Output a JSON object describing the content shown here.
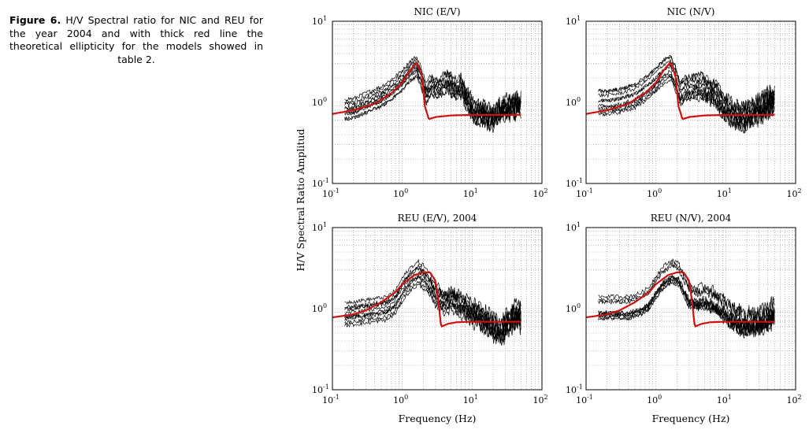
{
  "caption": {
    "label": "Figure 6.",
    "text": " H/V Spectral ratio for NIC and REU for the year 2004 and with thick red line the theoretical ellipticity for the models showed in table 2."
  },
  "colors": {
    "data": "#000000",
    "model": "#cc1111",
    "grid": "#8a8a8a"
  },
  "chart_data": {
    "type": "line",
    "shared_ylabel": "H/V Spectral Ratio Amplitud",
    "shared_xlabel": "Frequency (Hz)",
    "xscale": "log",
    "yscale": "log",
    "xlim": [
      0.1,
      100
    ],
    "ylim": [
      0.1,
      10
    ],
    "x_tick_base": "10",
    "x_tick_exps": [
      "-1",
      "0",
      "1",
      "2"
    ],
    "y_tick_base": "10",
    "y_tick_exps": [
      "-1",
      "0",
      "1"
    ],
    "panels": [
      {
        "title": "NIC (E/V)",
        "model_curve": [
          [
            0.1,
            0.72
          ],
          [
            0.2,
            0.8
          ],
          [
            0.4,
            0.96
          ],
          [
            0.7,
            1.3
          ],
          [
            1.0,
            1.75
          ],
          [
            1.3,
            2.5
          ],
          [
            1.6,
            3.1
          ],
          [
            1.9,
            2.2
          ],
          [
            2.1,
            0.9
          ],
          [
            2.4,
            0.62
          ],
          [
            3,
            0.66
          ],
          [
            5,
            0.69
          ],
          [
            10,
            0.7
          ],
          [
            50,
            0.7
          ]
        ],
        "data_curve": [
          [
            0.15,
            0.85
          ],
          [
            0.2,
            0.85
          ],
          [
            0.3,
            1.0
          ],
          [
            0.5,
            1.2
          ],
          [
            0.8,
            1.6
          ],
          [
            1.0,
            1.9
          ],
          [
            1.3,
            2.5
          ],
          [
            1.6,
            2.8
          ],
          [
            1.9,
            2.0
          ],
          [
            2.2,
            1.3
          ],
          [
            2.6,
            1.7
          ],
          [
            3.2,
            1.5
          ],
          [
            3.5,
            1.6
          ],
          [
            4.5,
            1.9
          ],
          [
            5.5,
            1.5
          ],
          [
            7,
            1.6
          ],
          [
            9,
            1.0
          ],
          [
            11,
            0.8
          ],
          [
            14,
            0.75
          ],
          [
            18,
            0.65
          ],
          [
            22,
            0.7
          ],
          [
            28,
            0.85
          ],
          [
            35,
            0.9
          ],
          [
            50,
            1.0
          ]
        ],
        "spread": 0.15
      },
      {
        "title": "NIC (N/V)",
        "model_curve": [
          [
            0.1,
            0.72
          ],
          [
            0.2,
            0.8
          ],
          [
            0.4,
            0.96
          ],
          [
            0.7,
            1.3
          ],
          [
            1.0,
            1.75
          ],
          [
            1.3,
            2.5
          ],
          [
            1.6,
            3.1
          ],
          [
            1.9,
            2.2
          ],
          [
            2.1,
            0.9
          ],
          [
            2.4,
            0.62
          ],
          [
            3,
            0.66
          ],
          [
            5,
            0.69
          ],
          [
            10,
            0.7
          ],
          [
            50,
            0.7
          ]
        ],
        "data_curve": [
          [
            0.15,
            1.0
          ],
          [
            0.2,
            1.0
          ],
          [
            0.3,
            1.05
          ],
          [
            0.5,
            1.2
          ],
          [
            0.8,
            1.6
          ],
          [
            1.0,
            1.9
          ],
          [
            1.3,
            2.4
          ],
          [
            1.6,
            2.7
          ],
          [
            1.9,
            2.0
          ],
          [
            2.2,
            1.3
          ],
          [
            2.7,
            1.5
          ],
          [
            3.3,
            1.5
          ],
          [
            4.5,
            1.6
          ],
          [
            5.5,
            1.4
          ],
          [
            7,
            1.3
          ],
          [
            9,
            0.95
          ],
          [
            11,
            0.8
          ],
          [
            14,
            0.7
          ],
          [
            18,
            0.65
          ],
          [
            22,
            0.7
          ],
          [
            28,
            0.8
          ],
          [
            35,
            0.9
          ],
          [
            50,
            1.1
          ]
        ],
        "spread": 0.15
      },
      {
        "title": "REU (E/V), 2004",
        "model_curve": [
          [
            0.1,
            0.78
          ],
          [
            0.2,
            0.85
          ],
          [
            0.3,
            0.95
          ],
          [
            0.5,
            1.2
          ],
          [
            0.8,
            1.6
          ],
          [
            1.0,
            2.0
          ],
          [
            1.5,
            2.6
          ],
          [
            2.0,
            2.8
          ],
          [
            2.5,
            2.8
          ],
          [
            3.0,
            2.2
          ],
          [
            3.3,
            1.2
          ],
          [
            3.6,
            0.6
          ],
          [
            4.5,
            0.65
          ],
          [
            6,
            0.68
          ],
          [
            10,
            0.69
          ],
          [
            50,
            0.69
          ]
        ],
        "data_curve": [
          [
            0.15,
            0.85
          ],
          [
            0.25,
            0.9
          ],
          [
            0.4,
            0.95
          ],
          [
            0.6,
            1.0
          ],
          [
            0.8,
            1.2
          ],
          [
            1.0,
            1.7
          ],
          [
            1.3,
            2.3
          ],
          [
            1.7,
            2.7
          ],
          [
            2.1,
            2.4
          ],
          [
            2.6,
            1.8
          ],
          [
            3.0,
            1.5
          ],
          [
            4,
            1.2
          ],
          [
            5,
            1.3
          ],
          [
            7,
            1.1
          ],
          [
            9,
            0.95
          ],
          [
            12,
            0.8
          ],
          [
            16,
            0.7
          ],
          [
            20,
            0.6
          ],
          [
            25,
            0.5
          ],
          [
            30,
            0.6
          ],
          [
            40,
            0.8
          ],
          [
            50,
            0.8
          ]
        ],
        "spread": 0.15
      },
      {
        "title": "REU (N/V), 2004",
        "model_curve": [
          [
            0.1,
            0.78
          ],
          [
            0.2,
            0.85
          ],
          [
            0.3,
            0.95
          ],
          [
            0.5,
            1.2
          ],
          [
            0.8,
            1.6
          ],
          [
            1.0,
            2.0
          ],
          [
            1.5,
            2.6
          ],
          [
            2.0,
            2.8
          ],
          [
            2.5,
            2.8
          ],
          [
            3.0,
            2.2
          ],
          [
            3.3,
            1.2
          ],
          [
            3.6,
            0.6
          ],
          [
            4.5,
            0.65
          ],
          [
            6,
            0.68
          ],
          [
            10,
            0.69
          ],
          [
            50,
            0.69
          ]
        ],
        "data_curve": [
          [
            0.15,
            1.0
          ],
          [
            0.25,
            1.0
          ],
          [
            0.4,
            1.0
          ],
          [
            0.6,
            1.1
          ],
          [
            0.8,
            1.3
          ],
          [
            1.0,
            1.8
          ],
          [
            1.3,
            2.4
          ],
          [
            1.7,
            2.8
          ],
          [
            2.1,
            2.6
          ],
          [
            2.6,
            1.8
          ],
          [
            3.0,
            1.4
          ],
          [
            4,
            1.3
          ],
          [
            5,
            1.4
          ],
          [
            7,
            1.2
          ],
          [
            9,
            1.0
          ],
          [
            12,
            0.8
          ],
          [
            16,
            0.7
          ],
          [
            20,
            0.65
          ],
          [
            25,
            0.7
          ],
          [
            30,
            0.7
          ],
          [
            40,
            0.8
          ],
          [
            50,
            0.9
          ]
        ],
        "spread": 0.15
      }
    ]
  }
}
